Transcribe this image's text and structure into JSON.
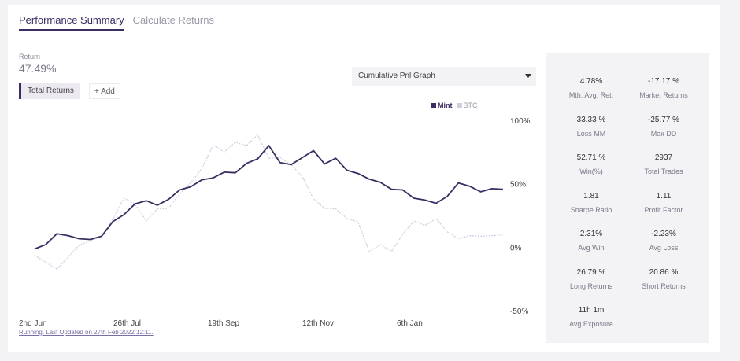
{
  "tabs": [
    {
      "label": "Performance Summary",
      "active": true
    },
    {
      "label": "Calculate Returns",
      "active": false
    }
  ],
  "returns": {
    "label": "Return",
    "value": "47.49%"
  },
  "controls": {
    "total_returns_chip": "Total Returns",
    "add_label": "+ Add"
  },
  "graph_select": {
    "selected": "Cumulative Pnl Graph"
  },
  "chart_data": {
    "type": "line",
    "ylim": [
      -50,
      100
    ],
    "yticks": [
      "100%",
      "50%",
      "0%",
      "-50%"
    ],
    "ytick_values": [
      100,
      50,
      0,
      -50
    ],
    "xticks": [
      "2nd Jun",
      "26th Jul",
      "19th Sep",
      "12th Nov",
      "6th Jan"
    ],
    "legend": [
      "Mint",
      "BTC"
    ],
    "legend_position": "top-right",
    "colors": {
      "Mint": "#3b2d63",
      "BTC": "#d4cde0"
    },
    "series": [
      {
        "name": "Mint",
        "values": [
          0,
          2,
          12,
          9,
          8,
          6,
          10,
          20,
          27,
          34,
          38,
          33,
          39,
          45,
          49,
          53,
          56,
          59,
          60,
          66,
          71,
          80,
          68,
          65,
          72,
          76,
          67,
          70,
          62,
          58,
          55,
          51,
          47,
          45,
          40,
          37,
          36,
          40,
          52,
          48,
          45,
          46,
          47
        ]
      },
      {
        "name": "BTC",
        "values": [
          -5,
          -12,
          -16,
          -8,
          3,
          5,
          10,
          22,
          40,
          34,
          22,
          30,
          32,
          42,
          52,
          62,
          82,
          75,
          84,
          80,
          90,
          70,
          72,
          65,
          57,
          38,
          32,
          30,
          24,
          20,
          -2,
          2,
          -2,
          10,
          22,
          17,
          24,
          12,
          8,
          9,
          10,
          9,
          11
        ]
      }
    ]
  },
  "status_text": "Running, Last Updated on 27th Feb 2022 12:11.",
  "stats": [
    {
      "value": "4.78%",
      "label": "Mth. Avg. Ret."
    },
    {
      "value": "-17.17 %",
      "label": "Market Returns"
    },
    {
      "value": "33.33 %",
      "label": "Loss MM"
    },
    {
      "value": "-25.77 %",
      "label": "Max DD"
    },
    {
      "value": "52.71 %",
      "label": "Win(%)"
    },
    {
      "value": "2937",
      "label": "Total Trades"
    },
    {
      "value": "1.81",
      "label": "Sharpe Ratio"
    },
    {
      "value": "1.11",
      "label": "Profit Factor"
    },
    {
      "value": "2.31%",
      "label": "Avg Win"
    },
    {
      "value": "-2.23%",
      "label": "Avg Loss"
    },
    {
      "value": "26.79 %",
      "label": "Long Returns"
    },
    {
      "value": "20.86 %",
      "label": "Short Returns"
    },
    {
      "value": "11h 1m",
      "label": "Avg Exposure"
    }
  ]
}
